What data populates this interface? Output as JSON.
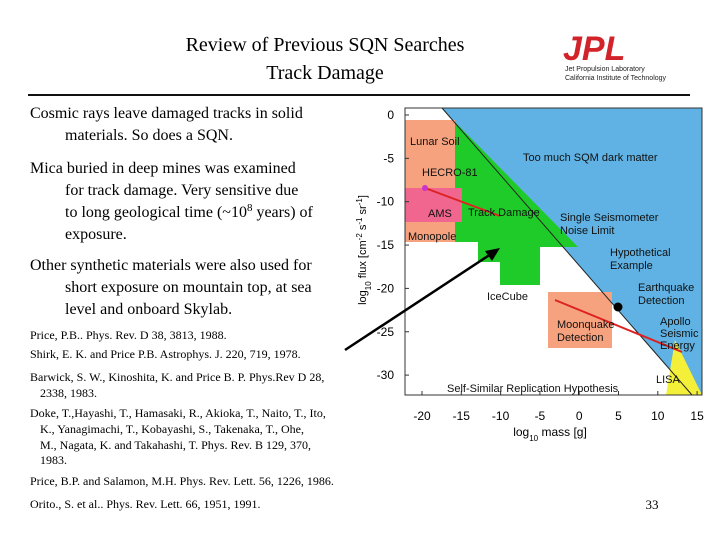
{
  "header": {
    "title_lines": [
      "Review of Previous SQN Searches",
      "Track Damage"
    ],
    "logo": {
      "name": "JPL",
      "line1": "Jet Propulsion Laboratory",
      "line2": "California Institute of Technology"
    }
  },
  "paragraphs": [
    {
      "lines": [
        "Cosmic rays leave damaged tracks in solid",
        "materials.  So does a SQN."
      ]
    },
    {
      "lines": [
        "Mica buried in deep mines was examined",
        "for track damage.  Very sensitive due",
        {
          "text": "to long geological time (~10",
          "sup": "8",
          "tail": " years) of"
        },
        "exposure."
      ]
    },
    {
      "lines": [
        "Other synthetic materials were also used for",
        "short exposure on mountain top, at sea",
        "level and onboard Skylab."
      ]
    }
  ],
  "references": [
    {
      "lines": [
        "Price, P.B.. Phys. Rev. D 38, 3813, 1988."
      ]
    },
    {
      "lines": [
        "Shirk, E. K. and Price P.B. Astrophys. J. 220, 719, 1978."
      ]
    },
    {
      "lines": [
        "Barwick, S. W., Kinoshita, K. and Price B. P.  Phys.Rev D 28,",
        "2338, 1983."
      ]
    },
    {
      "lines": [
        "Doke, T.,Hayashi, T., Hamasaki, R., Akioka, T., Naito, T., Ito,",
        "K., Yanagimachi, T., Kobayashi, S., Takenaka, T., Ohe,",
        "M., Nagata, K. and Takahashi, T. Phys. Rev. B 129, 370,",
        "1983."
      ]
    },
    {
      "lines": [
        "Price, B.P. and Salamon, M.H. Phys. Rev. Lett. 56, 1226, 1986."
      ]
    },
    {
      "lines": [
        "Orito., S. et al.. Phys. Rev. Lett. 66, 1951, 1991."
      ]
    }
  ],
  "figure": {
    "y_axis_label": [
      "log",
      "10",
      " flux [cm",
      "-2",
      " s",
      "-1",
      " sr",
      "-1",
      "]"
    ],
    "x_axis_label": [
      "log",
      "10",
      " mass [g]"
    ],
    "yticks": [
      0,
      -5,
      -10,
      -15,
      -20,
      -25,
      -30
    ],
    "xticks": [
      -20,
      -15,
      -10,
      -5,
      0,
      5,
      10,
      15
    ],
    "region_labels": [
      "Lunar Soil",
      "HECRO-81",
      "AMS",
      "Track Damage",
      "Monopole",
      "Too much SQM dark matter",
      "Single Seismometer",
      "Noise Limit",
      "Hypothetical",
      "Example",
      "Earthquake",
      "Detection",
      "Apollo",
      "Seismic",
      "Energy",
      "IceCube",
      "Moonquake",
      "Detection",
      "LISA",
      "Self-Similar Replication Hypothesis"
    ]
  },
  "page_number": "33"
}
